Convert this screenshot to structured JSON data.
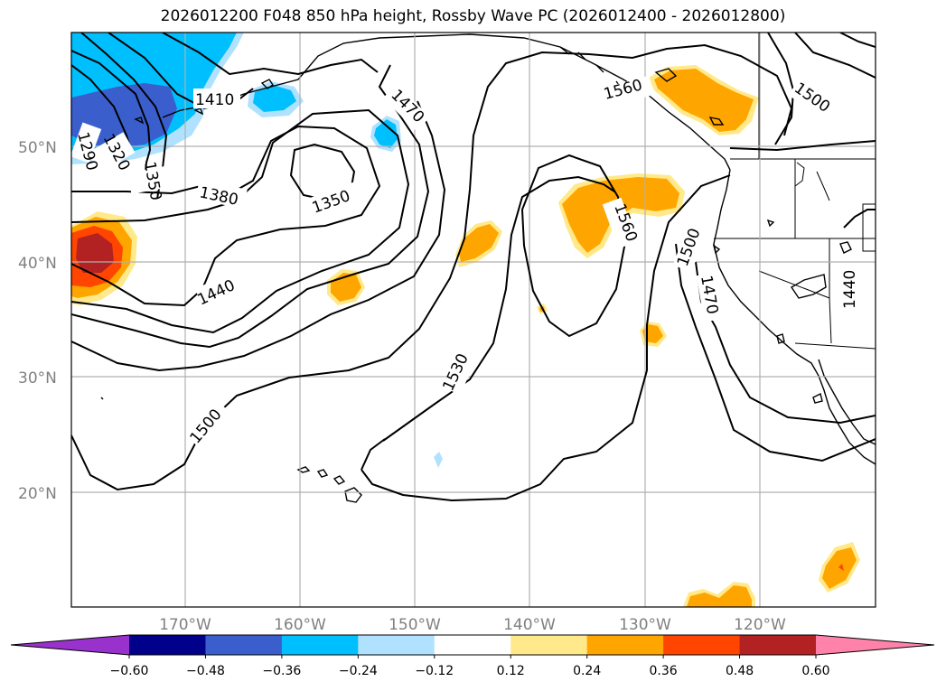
{
  "title": "2026012200 F048 850 hPa height, Rossby Wave PC (2026012400 - 2026012800)",
  "lat_labels": [
    "50°N",
    "40°N",
    "30°N",
    "20°N"
  ],
  "lon_labels": [
    "170°W",
    "160°W",
    "150°W",
    "140°W",
    "130°W",
    "120°W"
  ],
  "contour_labels": [
    "1290",
    "1320",
    "1350",
    "1350",
    "1380",
    "1410",
    "1440",
    "1440",
    "1470",
    "1470",
    "1500",
    "1500",
    "1500",
    "1530",
    "1560",
    "1560"
  ],
  "colorbar": {
    "ticks": [
      "−0.60",
      "−0.48",
      "−0.36",
      "−0.24",
      "−0.12",
      "0.12",
      "0.24",
      "0.36",
      "0.48",
      "0.60"
    ],
    "colors": [
      "#9932cc",
      "#00008b",
      "#3a5fcd",
      "#00bfff",
      "#b0e2ff",
      "#ffffff",
      "#ffe98a",
      "#ffa500",
      "#ff4500",
      "#b22222",
      "#ff82ab"
    ]
  }
}
